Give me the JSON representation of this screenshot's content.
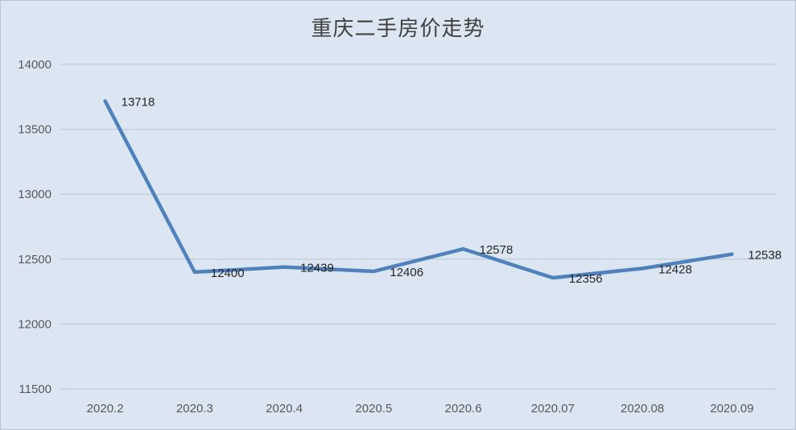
{
  "chart_data": {
    "type": "line",
    "title": "重庆二手房价走势",
    "categories": [
      "2020.2",
      "2020.3",
      "2020.4",
      "2020.5",
      "2020.6",
      "2020.07",
      "2020.08",
      "2020.09"
    ],
    "series": [
      {
        "values": [
          13718,
          12400,
          12439,
          12406,
          12578,
          12356,
          12428,
          12538
        ]
      }
    ],
    "ylim": [
      11500,
      14000
    ],
    "yticks": [
      11500,
      12000,
      12500,
      13000,
      13500,
      14000
    ],
    "grid": true,
    "legend": "none",
    "colors": {
      "line": "#4f81bd",
      "grid": "#c5cfdb",
      "background": "#dce6f2"
    }
  }
}
